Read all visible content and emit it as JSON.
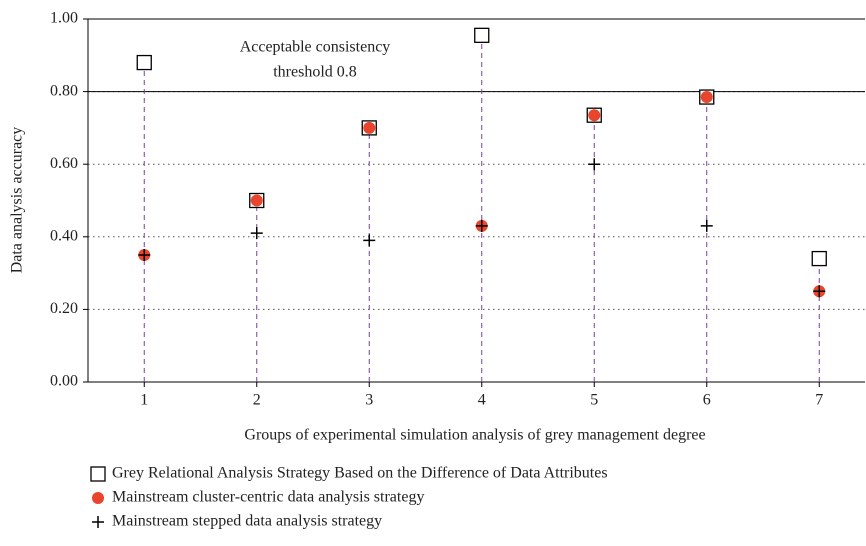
{
  "chart_data": {
    "type": "scatter",
    "x_label": "Groups of experimental simulation analysis of grey management degree",
    "y_label": "Data analysis accuracy",
    "categories": [
      "1",
      "2",
      "3",
      "4",
      "5",
      "6",
      "7"
    ],
    "series": [
      {
        "name": "Grey Relational Analysis Strategy Based on the Difference of Data Attributes",
        "color": "#000000",
        "marker": "square",
        "values": [
          0.88,
          0.5,
          0.7,
          0.955,
          0.735,
          0.785,
          0.34
        ]
      },
      {
        "name": "Mainstream cluster-centric data analysis strategy",
        "color": "#e8452c",
        "marker": "circle",
        "values": [
          0.35,
          0.5,
          0.7,
          0.43,
          0.735,
          0.785,
          0.25
        ]
      },
      {
        "name": "Mainstream stepped data analysis strategy",
        "color": "#000000",
        "marker": "plus",
        "values": [
          0.35,
          0.41,
          0.39,
          0.43,
          0.6,
          0.43,
          0.25
        ]
      }
    ],
    "ylim": [
      0,
      1
    ],
    "yticks": [
      {
        "value": 0,
        "label": "0.00"
      },
      {
        "value": 0.2,
        "label": "0.20"
      },
      {
        "value": 0.4,
        "label": "0.40"
      },
      {
        "value": 0.6,
        "label": "0.60"
      },
      {
        "value": 0.8,
        "label": "0.80"
      },
      {
        "value": 1,
        "label": "1.00"
      }
    ],
    "grid": true,
    "threshold": 0.8,
    "annotation": [
      "Acceptable consistency",
      "threshold 0.8"
    ],
    "stem_color": "#7b3fa0"
  }
}
